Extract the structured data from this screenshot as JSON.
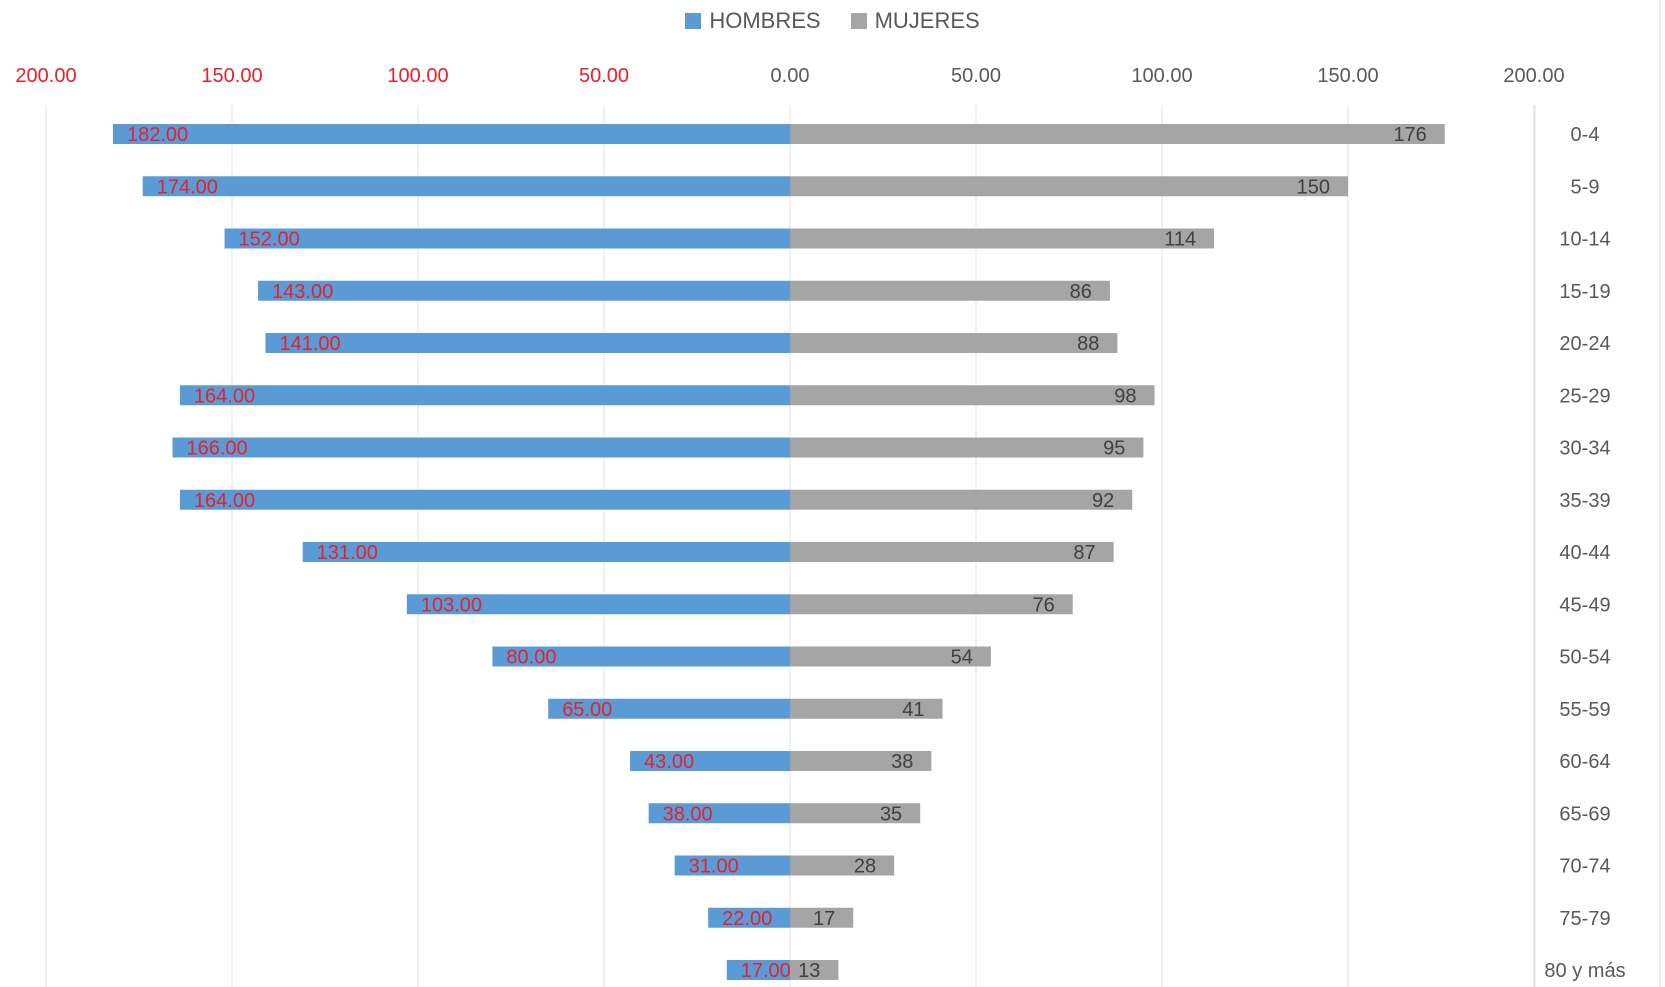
{
  "chart_data": {
    "type": "bar",
    "orientation": "horizontal",
    "layout": "population-pyramid",
    "categories": [
      "0-4",
      "5-9",
      "10-14",
      "15-19",
      "20-24",
      "25-29",
      "30-34",
      "35-39",
      "40-44",
      "45-49",
      "50-54",
      "55-59",
      "60-64",
      "65-69",
      "70-74",
      "75-79",
      "80 y más"
    ],
    "series": [
      {
        "name": "HOMBRES",
        "color": "#5B9BD5",
        "label_color": "#E8202A",
        "side": "left",
        "values": [
          182,
          174,
          152,
          143,
          141,
          164,
          166,
          164,
          131,
          103,
          80,
          65,
          43,
          38,
          31,
          22,
          17
        ],
        "labels": [
          "182.00",
          "174.00",
          "152.00",
          "143.00",
          "141.00",
          "164.00",
          "166.00",
          "164.00",
          "131.00",
          "103.00",
          "80.00",
          "65.00",
          "43.00",
          "38.00",
          "31.00",
          "22.00",
          "17.00"
        ]
      },
      {
        "name": "MUJERES",
        "color": "#A5A5A5",
        "label_color": "#404040",
        "side": "right",
        "values": [
          176,
          150,
          114,
          86,
          88,
          98,
          95,
          92,
          87,
          76,
          54,
          41,
          38,
          35,
          28,
          17,
          13
        ],
        "labels": [
          "176",
          "150",
          "114",
          "86",
          "88",
          "98",
          "95",
          "92",
          "87",
          "76",
          "54",
          "41",
          "38",
          "35",
          "28",
          "17",
          "13"
        ]
      }
    ],
    "xlim": [
      -200,
      200
    ],
    "x_ticks": {
      "left": [
        "200.00",
        "150.00",
        "100.00",
        "50.00"
      ],
      "center": "0.00",
      "right": [
        "50.00",
        "100.00",
        "150.00",
        "200.00"
      ],
      "left_color": "#E8202A",
      "right_color": "#595959"
    },
    "grid": true,
    "legend_position": "top"
  }
}
